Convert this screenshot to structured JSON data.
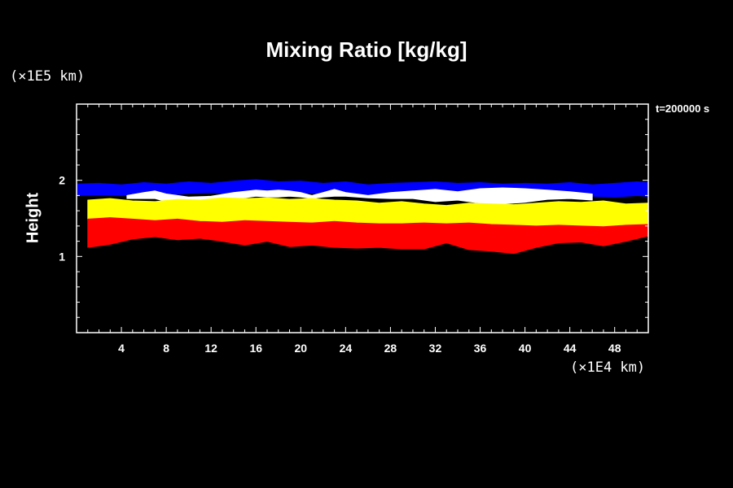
{
  "chart_data": {
    "type": "area",
    "title": "Mixing Ratio [kg/kg]",
    "xlabel": "",
    "ylabel": "Height",
    "x_unit": "(×1E4 km)",
    "y_unit": "(×1E5 km)",
    "annotation": "t=200000 s",
    "xlim": [
      0,
      51
    ],
    "ylim": [
      0,
      3
    ],
    "x_ticks": [
      4,
      8,
      12,
      16,
      20,
      24,
      28,
      32,
      36,
      40,
      44,
      48
    ],
    "y_ticks": [
      1,
      2
    ],
    "grid": false,
    "colors": {
      "blue": "#0000ff",
      "white": "#ffffff",
      "yellow": "#ffff00",
      "red": "#ff0000",
      "green": "#00c000",
      "background": "#000000"
    },
    "layers": [
      {
        "color": "blue",
        "x": [
          0,
          2,
          4,
          6,
          8,
          10,
          12,
          14,
          16,
          18,
          20,
          22,
          24,
          26,
          28,
          30,
          32,
          34,
          36,
          38,
          40,
          42,
          44,
          46,
          48,
          50,
          51
        ],
        "top": [
          1.95,
          1.96,
          1.94,
          1.97,
          1.95,
          1.98,
          1.96,
          1.99,
          2.01,
          1.98,
          1.99,
          1.96,
          1.98,
          1.94,
          1.96,
          1.97,
          1.98,
          1.96,
          1.97,
          1.95,
          1.96,
          1.95,
          1.97,
          1.94,
          1.96,
          1.98,
          1.97
        ],
        "bottom": [
          1.8,
          1.81,
          1.8,
          1.82,
          1.8,
          1.83,
          1.84,
          1.82,
          1.85,
          1.83,
          1.84,
          1.82,
          1.83,
          1.81,
          1.82,
          1.83,
          1.84,
          1.83,
          1.82,
          1.81,
          1.82,
          1.8,
          1.81,
          1.79,
          1.78,
          1.8,
          1.79
        ]
      },
      {
        "color": "white",
        "x": [
          4.5,
          6,
          7,
          8,
          10,
          12,
          14,
          16,
          17,
          18,
          19,
          20,
          21,
          22,
          23,
          24,
          26,
          28,
          30,
          32,
          34,
          36,
          38,
          40,
          42,
          44,
          46
        ],
        "top": [
          1.8,
          1.84,
          1.86,
          1.82,
          1.78,
          1.79,
          1.84,
          1.87,
          1.86,
          1.87,
          1.86,
          1.84,
          1.8,
          1.84,
          1.88,
          1.84,
          1.8,
          1.84,
          1.86,
          1.88,
          1.85,
          1.89,
          1.9,
          1.89,
          1.87,
          1.85,
          1.82
        ],
        "bottom": [
          1.76,
          1.76,
          1.76,
          1.72,
          1.72,
          1.72,
          1.75,
          1.79,
          1.78,
          1.78,
          1.79,
          1.78,
          1.76,
          1.78,
          1.79,
          1.79,
          1.77,
          1.76,
          1.76,
          1.72,
          1.74,
          1.7,
          1.69,
          1.71,
          1.75,
          1.76,
          1.74
        ]
      },
      {
        "color": "yellow",
        "x": [
          1,
          3,
          5,
          7,
          9,
          11,
          13,
          15,
          17,
          19,
          21,
          23,
          25,
          27,
          29,
          31,
          33,
          35,
          37,
          39,
          41,
          43,
          45,
          47,
          49,
          51
        ],
        "top": [
          1.74,
          1.76,
          1.73,
          1.72,
          1.75,
          1.74,
          1.77,
          1.76,
          1.77,
          1.75,
          1.76,
          1.74,
          1.73,
          1.7,
          1.72,
          1.69,
          1.67,
          1.7,
          1.69,
          1.68,
          1.7,
          1.72,
          1.71,
          1.73,
          1.69,
          1.7
        ],
        "bottom": [
          1.48,
          1.5,
          1.48,
          1.46,
          1.48,
          1.45,
          1.44,
          1.46,
          1.45,
          1.44,
          1.43,
          1.45,
          1.43,
          1.42,
          1.42,
          1.43,
          1.42,
          1.43,
          1.41,
          1.4,
          1.39,
          1.4,
          1.39,
          1.38,
          1.4,
          1.41
        ]
      },
      {
        "color": "red",
        "x": [
          1,
          3,
          5,
          7,
          9,
          11,
          13,
          15,
          17,
          19,
          21,
          23,
          25,
          27,
          29,
          31,
          33,
          35,
          37,
          39,
          41,
          43,
          45,
          47,
          49,
          51
        ],
        "top": [
          1.49,
          1.51,
          1.49,
          1.47,
          1.49,
          1.46,
          1.45,
          1.47,
          1.46,
          1.45,
          1.44,
          1.46,
          1.44,
          1.43,
          1.43,
          1.44,
          1.43,
          1.44,
          1.42,
          1.41,
          1.4,
          1.41,
          1.4,
          1.39,
          1.41,
          1.42
        ],
        "bottom": [
          1.12,
          1.16,
          1.23,
          1.26,
          1.22,
          1.24,
          1.2,
          1.15,
          1.2,
          1.13,
          1.15,
          1.12,
          1.11,
          1.12,
          1.1,
          1.1,
          1.18,
          1.09,
          1.07,
          1.04,
          1.12,
          1.18,
          1.19,
          1.14,
          1.2,
          1.27
        ]
      }
    ]
  }
}
